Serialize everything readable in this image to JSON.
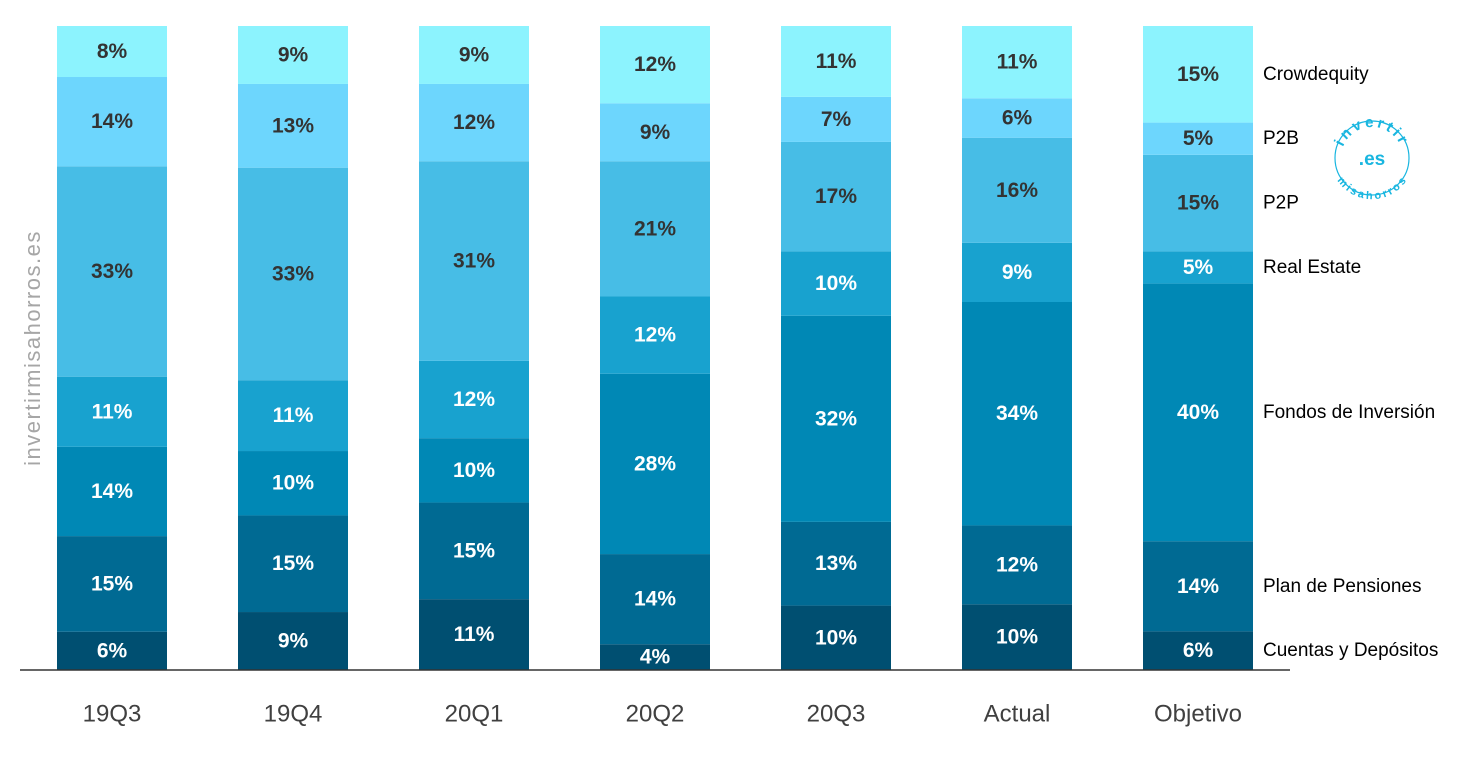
{
  "watermark": "invertirmisahorros.es",
  "logo": {
    "top_text": "invertir",
    "middle_text": ".es",
    "bottom_text": "misahorros",
    "color": "#19b6e0"
  },
  "chart_data": {
    "type": "bar",
    "stacked": true,
    "normalized": true,
    "title": "",
    "xlabel": "",
    "ylabel": "",
    "ylim": [
      0,
      100
    ],
    "grid": false,
    "legend_position": "right",
    "categories": [
      "19Q3",
      "19Q4",
      "20Q1",
      "20Q2",
      "20Q3",
      "Actual",
      "Objetivo"
    ],
    "series": [
      {
        "name": "Cuentas y Depósitos",
        "values": [
          6,
          9,
          11,
          4,
          10,
          10,
          6
        ],
        "labels": [
          "6%",
          "9%",
          "11%",
          "4%",
          "10%",
          "10%",
          "6%"
        ],
        "color": "#004f71",
        "label_color": "#ffffff"
      },
      {
        "name": "Plan de Pensiones",
        "values": [
          15,
          15,
          15,
          14,
          13,
          12,
          14
        ],
        "labels": [
          "15%",
          "15%",
          "15%",
          "14%",
          "13%",
          "12%",
          "14%"
        ],
        "color": "#006a93",
        "label_color": "#ffffff"
      },
      {
        "name": "Fondos de Inversión",
        "values": [
          14,
          10,
          10,
          28,
          32,
          34,
          40
        ],
        "labels": [
          "14%",
          "10%",
          "10%",
          "28%",
          "32%",
          "34%",
          "40%"
        ],
        "color": "#0088b5",
        "label_color": "#ffffff"
      },
      {
        "name": "Real Estate",
        "values": [
          11,
          11,
          12,
          12,
          10,
          9,
          5
        ],
        "labels": [
          "11%",
          "11%",
          "12%",
          "12%",
          "10%",
          "9%",
          "5%"
        ],
        "color": "#18a2cf",
        "label_color": "#ffffff"
      },
      {
        "name": "P2P",
        "values": [
          33,
          33,
          31,
          21,
          17,
          16,
          15
        ],
        "labels": [
          "33%",
          "33%",
          "31%",
          "21%",
          "17%",
          "16%",
          "15%"
        ],
        "color": "#47bde6",
        "label_color": "#333333"
      },
      {
        "name": "P2B",
        "values": [
          14,
          13,
          12,
          9,
          7,
          6,
          5
        ],
        "labels": [
          "14%",
          "13%",
          "12%",
          "9%",
          "7%",
          "6%",
          "5%"
        ],
        "color": "#6dd6fd",
        "label_color": "#333333"
      },
      {
        "name": "Crowdequity",
        "values": [
          8,
          9,
          9,
          12,
          11,
          11,
          15
        ],
        "labels": [
          "8%",
          "9%",
          "9%",
          "12%",
          "11%",
          "11%",
          "15%"
        ],
        "color": "#8cf3fe",
        "label_color": "#333333"
      }
    ],
    "axis_color": "#333333"
  }
}
